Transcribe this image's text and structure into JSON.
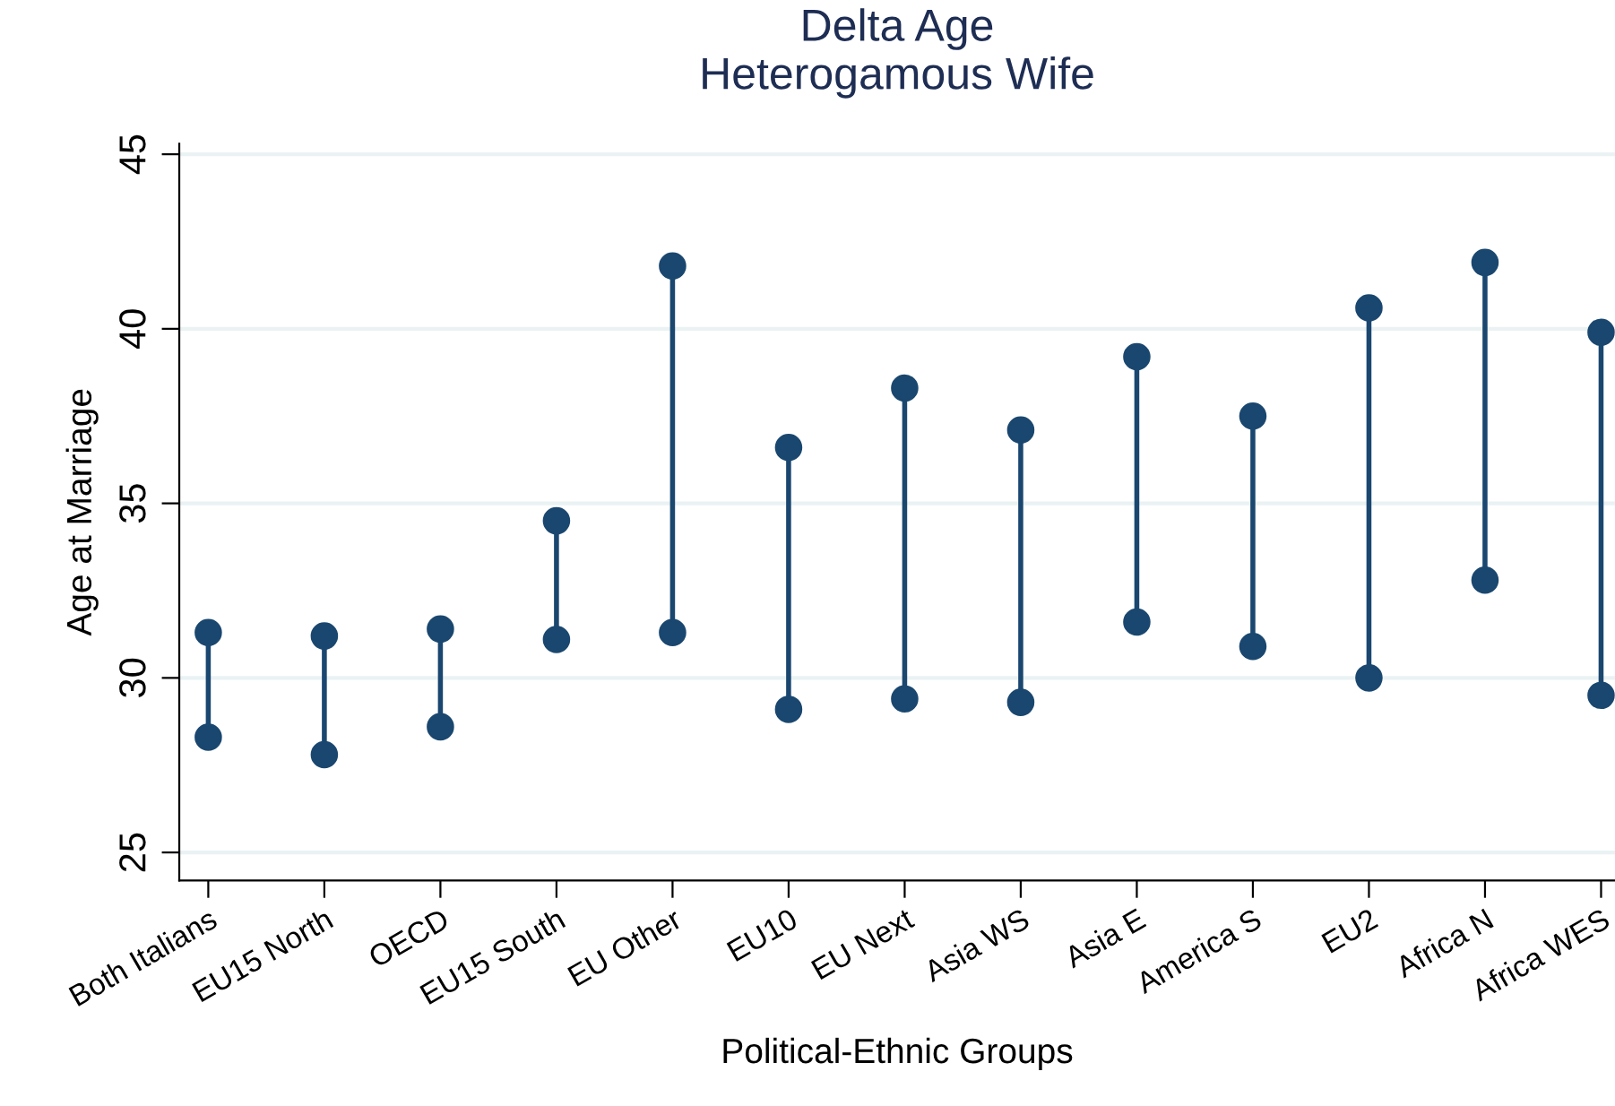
{
  "chart_data": {
    "type": "line",
    "title": "Delta Age\nHeterogamous Wife",
    "xlabel": "Political-Ethnic Groups",
    "ylabel": "Age at Marriage",
    "categories": [
      "Both Italians",
      "EU15 North",
      "OECD",
      "EU15 South",
      "EU Other",
      "EU10",
      "EU Next",
      "Asia WS",
      "Asia E",
      "America S",
      "EU2",
      "Africa N",
      "Africa WES"
    ],
    "series": [
      {
        "color": "#1a476f",
        "x": [
          "Both Italians",
          "Both Italians"
        ],
        "values": [
          28.3,
          31.3
        ]
      },
      {
        "color": "#1a476f",
        "x": [
          "EU15 North",
          "EU15 North"
        ],
        "values": [
          27.8,
          31.2
        ]
      },
      {
        "color": "#1a476f",
        "x": [
          "OECD",
          "OECD"
        ],
        "values": [
          28.6,
          31.4
        ]
      },
      {
        "color": "#1a476f",
        "x": [
          "EU15 South",
          "EU15 South"
        ],
        "values": [
          31.1,
          34.5
        ]
      },
      {
        "color": "#1a476f",
        "x": [
          "EU Other",
          "EU Other"
        ],
        "values": [
          31.3,
          41.8
        ]
      },
      {
        "color": "#1a476f",
        "x": [
          "EU10",
          "EU10"
        ],
        "values": [
          29.1,
          36.6
        ]
      },
      {
        "color": "#1a476f",
        "x": [
          "EU Next",
          "EU Next"
        ],
        "values": [
          29.4,
          38.3
        ]
      },
      {
        "color": "#1a476f",
        "x": [
          "Asia WS",
          "Asia WS"
        ],
        "values": [
          29.3,
          37.1
        ]
      },
      {
        "color": "#1a476f",
        "x": [
          "Asia E",
          "Asia E"
        ],
        "values": [
          31.6,
          39.2
        ]
      },
      {
        "color": "#1a476f",
        "x": [
          "America S",
          "America S"
        ],
        "values": [
          30.9,
          37.5
        ]
      },
      {
        "color": "#1a476f",
        "x": [
          "EU2",
          "EU2"
        ],
        "values": [
          30.0,
          40.6
        ]
      },
      {
        "color": "#1a476f",
        "x": [
          "Africa N",
          "Africa N"
        ],
        "values": [
          32.8,
          41.9
        ]
      },
      {
        "color": "#1a476f",
        "x": [
          "Africa WES",
          "Africa WES"
        ],
        "values": [
          29.5,
          39.9
        ]
      }
    ],
    "ylim": [
      24.2,
      45.3
    ],
    "yticks": [
      25,
      30,
      35,
      40,
      45
    ],
    "grid": "y",
    "marker": "circle",
    "line_style": "solid"
  }
}
